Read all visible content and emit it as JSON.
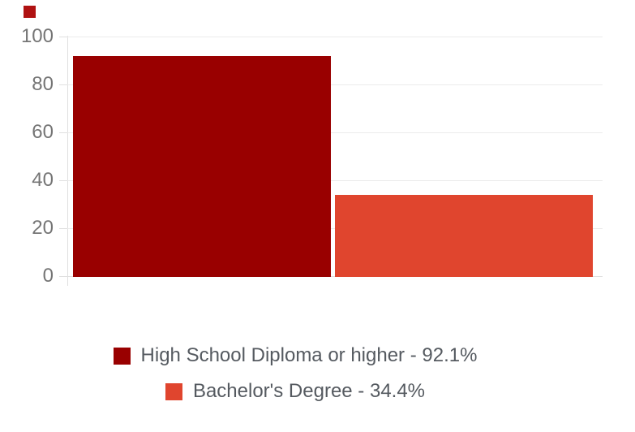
{
  "background": "#ffffff",
  "marker": {
    "color": "#b01212"
  },
  "axis": {
    "label_color": "#757575",
    "line_color": "#e0e0e0",
    "gridline_color": "#ebebeb"
  },
  "legend": {
    "text_color": "#555a60",
    "position": "bottom"
  },
  "chart_data": {
    "type": "bar",
    "title": "",
    "xlabel": "",
    "ylabel": "",
    "categories": [
      "High School Diploma or higher",
      "Bachelor's Degree"
    ],
    "values": [
      92.1,
      34.4
    ],
    "series": [
      {
        "name": "High School Diploma or higher",
        "value": 92.1,
        "color": "#990000",
        "legend_label": "High School Diploma or higher - 92.1%"
      },
      {
        "name": "Bachelor's Degree",
        "value": 34.4,
        "color": "#e0452e",
        "legend_label": "Bachelor's Degree - 34.4%"
      }
    ],
    "ylim": [
      0,
      100
    ],
    "yticks": [
      0,
      20,
      40,
      60,
      80,
      100
    ],
    "grid": true,
    "legend_position": "bottom"
  }
}
